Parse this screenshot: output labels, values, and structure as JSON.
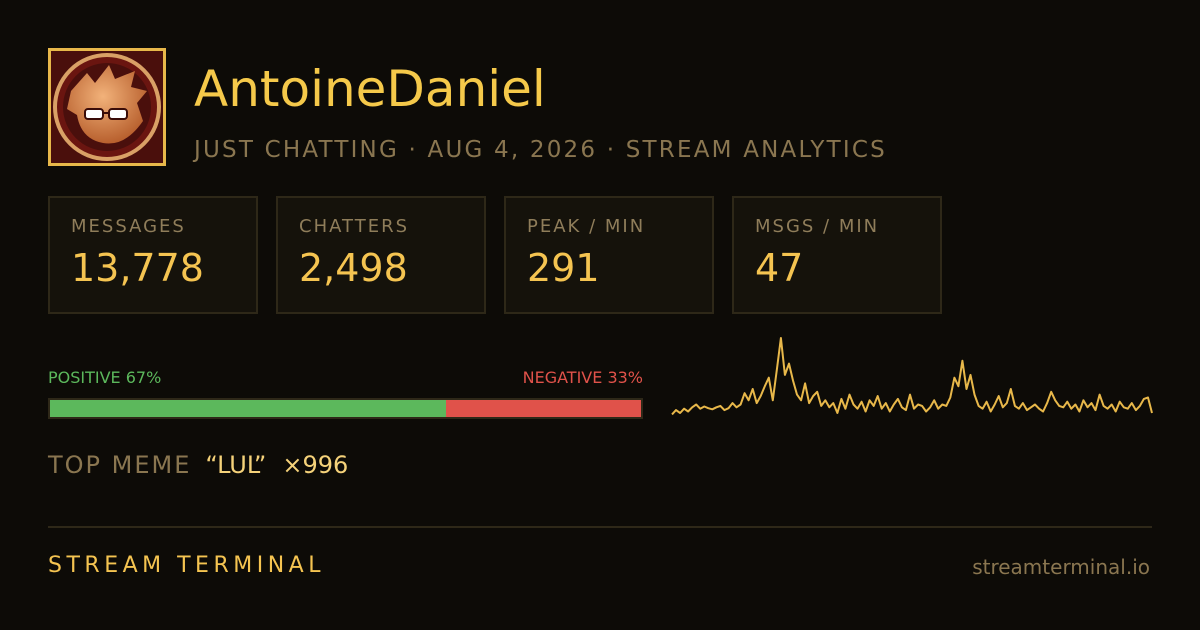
{
  "header": {
    "name": "AntoineDaniel",
    "subtitle": "JUST CHATTING · AUG 4, 2026 · STREAM ANALYTICS"
  },
  "stats": [
    {
      "label": "MESSAGES",
      "value": "13,778"
    },
    {
      "label": "CHATTERS",
      "value": "2,498"
    },
    {
      "label": "PEAK / MIN",
      "value": "291"
    },
    {
      "label": "MSGS / MIN",
      "value": "47"
    }
  ],
  "sentiment": {
    "positive": {
      "label": "POSITIVE 67%",
      "value": 67,
      "color": "#5cb85c"
    },
    "negative": {
      "label": "NEGATIVE 33%",
      "value": 33,
      "color": "#e0524a"
    }
  },
  "top_meme": {
    "label": "TOP MEME",
    "meme": "“LUL”",
    "count": "×996"
  },
  "activity": {
    "color": "#e8b84a",
    "values": [
      20,
      35,
      25,
      40,
      30,
      45,
      55,
      40,
      48,
      42,
      38,
      45,
      50,
      35,
      42,
      60,
      45,
      55,
      95,
      70,
      110,
      60,
      85,
      120,
      150,
      70,
      180,
      291,
      160,
      200,
      140,
      90,
      70,
      130,
      60,
      85,
      100,
      50,
      70,
      45,
      60,
      25,
      75,
      40,
      90,
      55,
      40,
      65,
      30,
      70,
      50,
      85,
      40,
      60,
      30,
      55,
      75,
      45,
      35,
      90,
      40,
      55,
      50,
      30,
      45,
      70,
      40,
      55,
      50,
      80,
      150,
      120,
      210,
      110,
      160,
      90,
      50,
      40,
      65,
      30,
      55,
      85,
      45,
      60,
      110,
      50,
      40,
      60,
      35,
      45,
      55,
      40,
      30,
      60,
      100,
      70,
      50,
      45,
      65,
      40,
      55,
      30,
      70,
      45,
      60,
      35,
      90,
      50,
      40,
      55,
      30,
      65,
      45,
      40,
      60,
      35,
      50,
      75,
      80,
      25
    ]
  },
  "footer": {
    "brand": "STREAM TERMINAL",
    "url": "streamterminal.io"
  }
}
